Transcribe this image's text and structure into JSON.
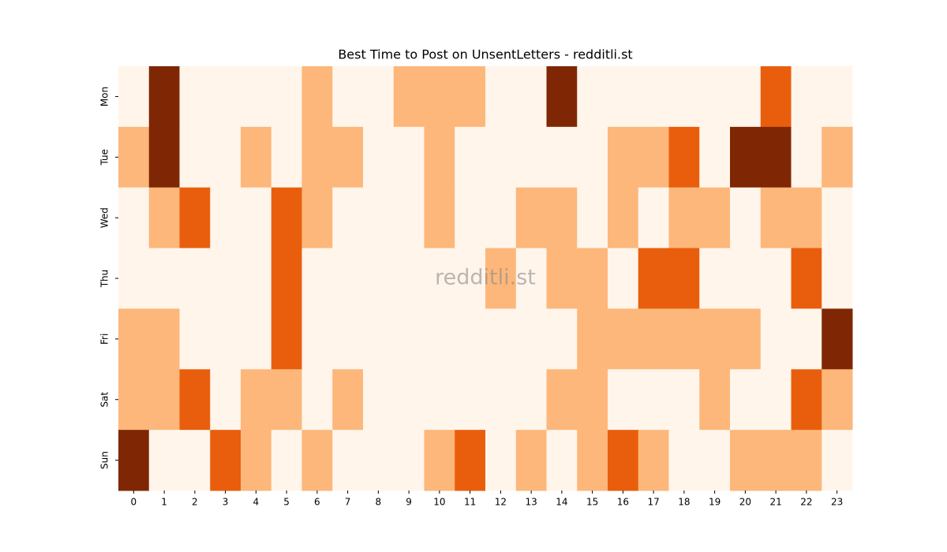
{
  "chart_data": {
    "type": "heatmap",
    "title": "Best Time to Post on UnsentLetters - redditli.st",
    "watermark": "redditli.st",
    "x": [
      0,
      1,
      2,
      3,
      4,
      5,
      6,
      7,
      8,
      9,
      10,
      11,
      12,
      13,
      14,
      15,
      16,
      17,
      18,
      19,
      20,
      21,
      22,
      23
    ],
    "categories": [
      "Mon",
      "Tue",
      "Wed",
      "Thu",
      "Fri",
      "Sat",
      "Sun"
    ],
    "colors": [
      "#fff5eb",
      "#fdb77a",
      "#e95e0d",
      "#7f2704"
    ],
    "values": [
      [
        0,
        3,
        0,
        0,
        0,
        0,
        1,
        0,
        0,
        1,
        1,
        1,
        0,
        0,
        3,
        0,
        0,
        0,
        0,
        0,
        0,
        2,
        0,
        0
      ],
      [
        1,
        3,
        0,
        0,
        1,
        0,
        1,
        1,
        0,
        0,
        1,
        0,
        0,
        0,
        0,
        0,
        1,
        1,
        2,
        0,
        3,
        3,
        0,
        1
      ],
      [
        0,
        1,
        2,
        0,
        0,
        2,
        1,
        0,
        0,
        0,
        1,
        0,
        0,
        1,
        1,
        0,
        1,
        0,
        1,
        1,
        0,
        1,
        1,
        0
      ],
      [
        0,
        0,
        0,
        0,
        0,
        2,
        0,
        0,
        0,
        0,
        0,
        0,
        1,
        0,
        1,
        1,
        0,
        2,
        2,
        0,
        0,
        0,
        2,
        0
      ],
      [
        1,
        1,
        0,
        0,
        0,
        2,
        0,
        0,
        0,
        0,
        0,
        0,
        0,
        0,
        0,
        1,
        1,
        1,
        1,
        1,
        1,
        0,
        0,
        3
      ],
      [
        1,
        1,
        2,
        0,
        1,
        1,
        0,
        1,
        0,
        0,
        0,
        0,
        0,
        0,
        1,
        1,
        0,
        0,
        0,
        1,
        0,
        0,
        2,
        1
      ],
      [
        3,
        0,
        0,
        2,
        1,
        0,
        1,
        0,
        0,
        0,
        1,
        2,
        0,
        1,
        0,
        1,
        2,
        1,
        0,
        0,
        1,
        1,
        1,
        0
      ]
    ]
  }
}
